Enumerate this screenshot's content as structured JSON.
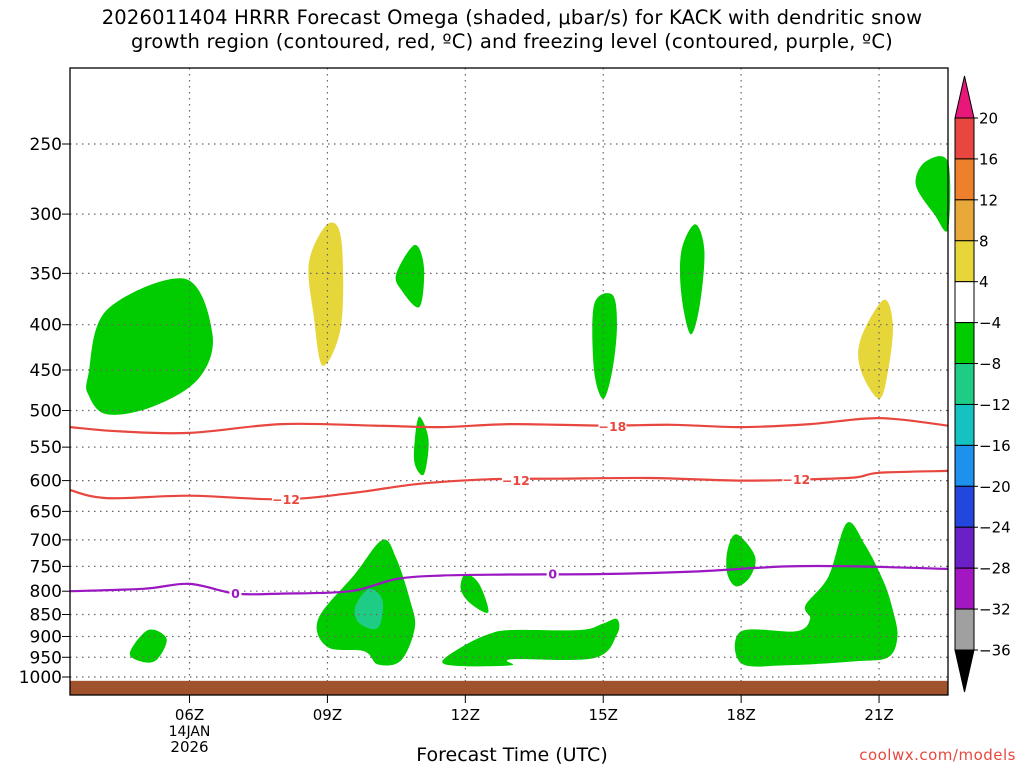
{
  "title": {
    "line1": "2026011404 HRRR Forecast Omega (shaded, μbar/s) for KACK with dendritic snow",
    "line2": "growth region (contoured, red, ºC) and freezing level (contoured, purple, ºC)"
  },
  "footer": {
    "xlabel": "Forecast Time (UTC)",
    "credit": "coolwx.com/models"
  },
  "chart_data": {
    "type": "contour",
    "xlabel": "Forecast Time (UTC)",
    "y_axis": {
      "type": "log-pressure",
      "ticks": [
        250,
        300,
        350,
        400,
        450,
        500,
        550,
        600,
        650,
        700,
        750,
        800,
        850,
        900,
        950,
        1000
      ],
      "range": [
        205,
        1030
      ],
      "grid": true
    },
    "x_axis": {
      "range_hours": [
        3.4,
        22.5
      ],
      "ticks": [
        {
          "hour": 6,
          "label": "06Z",
          "date1": "14JAN",
          "date2": "2026"
        },
        {
          "hour": 9,
          "label": "09Z"
        },
        {
          "hour": 12,
          "label": "12Z"
        },
        {
          "hour": 15,
          "label": "15Z"
        },
        {
          "hour": 18,
          "label": "18Z"
        },
        {
          "hour": 21,
          "label": "21Z"
        }
      ],
      "grid": true
    },
    "colorbar": {
      "labels": [
        "20",
        "16",
        "12",
        "8",
        "4",
        "−4",
        "−8",
        "−12",
        "−16",
        "−20",
        "−24",
        "−28",
        "−32",
        "−36"
      ],
      "top_arrow_color": "#e8177a",
      "bottom_arrow_color": "#000000",
      "bins": [
        {
          "from": 16,
          "to": 20,
          "color": "#e8473f"
        },
        {
          "from": 12,
          "to": 16,
          "color": "#ee7f2b"
        },
        {
          "from": 8,
          "to": 12,
          "color": "#e8a83a"
        },
        {
          "from": 4,
          "to": 8,
          "color": "#e6d63a"
        },
        {
          "from": -4,
          "to": 4,
          "color": "#ffffff"
        },
        {
          "from": -8,
          "to": -4,
          "color": "#00cc00"
        },
        {
          "from": -12,
          "to": -8,
          "color": "#1fcc85"
        },
        {
          "from": -16,
          "to": -12,
          "color": "#14c2c2"
        },
        {
          "from": -20,
          "to": -16,
          "color": "#1e90ee"
        },
        {
          "from": -24,
          "to": -20,
          "color": "#2347dd"
        },
        {
          "from": -28,
          "to": -24,
          "color": "#6b20c7"
        },
        {
          "from": -32,
          "to": -28,
          "color": "#a317c2"
        },
        {
          "from": -36,
          "to": -32,
          "color": "#a0a0a0"
        }
      ]
    },
    "ground_color": "#a0522d",
    "isotherms": [
      {
        "value": -18,
        "label": "−18",
        "color": "#e8473f",
        "points": [
          [
            3.4,
            522
          ],
          [
            4.5,
            528
          ],
          [
            6,
            530
          ],
          [
            8,
            518
          ],
          [
            10,
            520
          ],
          [
            11.5,
            522
          ],
          [
            13,
            518
          ],
          [
            15,
            520
          ],
          [
            16.5,
            519
          ],
          [
            18,
            522
          ],
          [
            19.5,
            518
          ],
          [
            21,
            510
          ],
          [
            22.5,
            520
          ]
        ],
        "label_at": [
          15.2,
          521
        ]
      },
      {
        "value": -12,
        "label": "−12",
        "color": "#e8473f",
        "points": [
          [
            3.4,
            615
          ],
          [
            4.2,
            628
          ],
          [
            6,
            624
          ],
          [
            8,
            630
          ],
          [
            9.5,
            620
          ],
          [
            11,
            605
          ],
          [
            12.5,
            598
          ],
          [
            14,
            597
          ],
          [
            16,
            596
          ],
          [
            18,
            600
          ],
          [
            19.5,
            598
          ],
          [
            20.5,
            595
          ],
          [
            21,
            588
          ],
          [
            22.5,
            585
          ]
        ],
        "label_at": [
          8.1,
          630
        ],
        "label_at2": [
          13.1,
          600
        ],
        "label_at3": [
          19.2,
          598
        ]
      },
      {
        "value": 0,
        "label": "0",
        "color": "#9a17c2",
        "points": [
          [
            3.4,
            800
          ],
          [
            5,
            795
          ],
          [
            6,
            785
          ],
          [
            7,
            805
          ],
          [
            8,
            805
          ],
          [
            9.5,
            800
          ],
          [
            10.5,
            775
          ],
          [
            11.5,
            768
          ],
          [
            13,
            766
          ],
          [
            15,
            765
          ],
          [
            17,
            760
          ],
          [
            19,
            750
          ],
          [
            20.5,
            750
          ],
          [
            22.5,
            755
          ]
        ],
        "label_at": [
          7.0,
          805
        ],
        "label_at2": [
          13.9,
          765
        ]
      }
    ],
    "omega_regions": [
      {
        "color": "#00cc00",
        "points": [
          [
            3.8,
            455
          ],
          [
            4.2,
            385
          ],
          [
            5.9,
            355
          ],
          [
            6.5,
            410
          ],
          [
            6.2,
            460
          ],
          [
            5.2,
            495
          ],
          [
            4.2,
            505
          ],
          [
            3.8,
            480
          ]
        ]
      },
      {
        "color": "#e6d63a",
        "points": [
          [
            8.6,
            340
          ],
          [
            9.0,
            308
          ],
          [
            9.3,
            320
          ],
          [
            9.3,
            400
          ],
          [
            8.9,
            445
          ],
          [
            8.7,
            390
          ]
        ]
      },
      {
        "color": "#00cc00",
        "points": [
          [
            10.5,
            350
          ],
          [
            10.9,
            325
          ],
          [
            11.1,
            345
          ],
          [
            11.0,
            382
          ],
          [
            10.6,
            365
          ]
        ]
      },
      {
        "color": "#00cc00",
        "points": [
          [
            10.9,
            540
          ],
          [
            11.0,
            508
          ],
          [
            11.2,
            540
          ],
          [
            11.1,
            590
          ],
          [
            10.9,
            575
          ]
        ]
      },
      {
        "color": "#00cc00",
        "points": [
          [
            14.8,
            380
          ],
          [
            15.2,
            370
          ],
          [
            15.3,
            400
          ],
          [
            15.2,
            450
          ],
          [
            15.0,
            485
          ],
          [
            14.8,
            450
          ]
        ]
      },
      {
        "color": "#00cc00",
        "points": [
          [
            16.7,
            330
          ],
          [
            17.0,
            308
          ],
          [
            17.2,
            330
          ],
          [
            17.1,
            380
          ],
          [
            16.9,
            410
          ],
          [
            16.7,
            370
          ]
        ]
      },
      {
        "color": "#e6d63a",
        "points": [
          [
            20.6,
            415
          ],
          [
            21.1,
            375
          ],
          [
            21.3,
            400
          ],
          [
            21.2,
            450
          ],
          [
            21.0,
            485
          ],
          [
            20.6,
            450
          ]
        ]
      },
      {
        "color": "#00cc00",
        "points": [
          [
            21.8,
            278
          ],
          [
            22.0,
            262
          ],
          [
            22.5,
            262
          ],
          [
            22.5,
            312
          ],
          [
            22.2,
            300
          ]
        ]
      },
      {
        "color": "#00cc00",
        "points": [
          [
            8.8,
            860
          ],
          [
            9.6,
            765
          ],
          [
            10.2,
            700
          ],
          [
            10.5,
            735
          ],
          [
            10.8,
            820
          ],
          [
            10.9,
            880
          ],
          [
            10.6,
            958
          ],
          [
            10.1,
            968
          ],
          [
            9.8,
            935
          ],
          [
            9.0,
            925
          ]
        ]
      },
      {
        "color": "#1fcc85",
        "points": [
          [
            9.6,
            835
          ],
          [
            9.9,
            795
          ],
          [
            10.2,
            820
          ],
          [
            10.1,
            880
          ],
          [
            9.7,
            870
          ]
        ]
      },
      {
        "color": "#00cc00",
        "points": [
          [
            11.9,
            795
          ],
          [
            12.0,
            765
          ],
          [
            12.3,
            785
          ],
          [
            12.5,
            845
          ],
          [
            12.1,
            825
          ]
        ]
      },
      {
        "color": "#00cc00",
        "points": [
          [
            11.5,
            960
          ],
          [
            12.0,
            920
          ],
          [
            12.5,
            895
          ],
          [
            13,
            885
          ],
          [
            14.5,
            885
          ],
          [
            15.0,
            870
          ],
          [
            15.3,
            860
          ],
          [
            15.3,
            895
          ],
          [
            14.8,
            952
          ],
          [
            13,
            955
          ],
          [
            13,
            970
          ],
          [
            11.9,
            972
          ]
        ]
      },
      {
        "color": "#00cc00",
        "points": [
          [
            17.7,
            720
          ],
          [
            17.9,
            690
          ],
          [
            18.3,
            730
          ],
          [
            18.2,
            770
          ],
          [
            17.9,
            790
          ],
          [
            17.7,
            765
          ]
        ]
      },
      {
        "color": "#00cc00",
        "points": [
          [
            18.0,
            888
          ],
          [
            19.2,
            888
          ],
          [
            19.5,
            860
          ],
          [
            19.4,
            830
          ],
          [
            19.9,
            770
          ],
          [
            20.3,
            670
          ],
          [
            20.7,
            710
          ],
          [
            21.1,
            780
          ],
          [
            21.3,
            840
          ],
          [
            21.4,
            900
          ],
          [
            21.2,
            950
          ],
          [
            20.5,
            960
          ],
          [
            19.0,
            970
          ],
          [
            18.0,
            965
          ]
        ]
      },
      {
        "color": "#00cc00",
        "points": [
          [
            4.7,
            940
          ],
          [
            5.1,
            885
          ],
          [
            5.5,
            905
          ],
          [
            5.3,
            955
          ],
          [
            5.0,
            962
          ]
        ]
      }
    ]
  }
}
